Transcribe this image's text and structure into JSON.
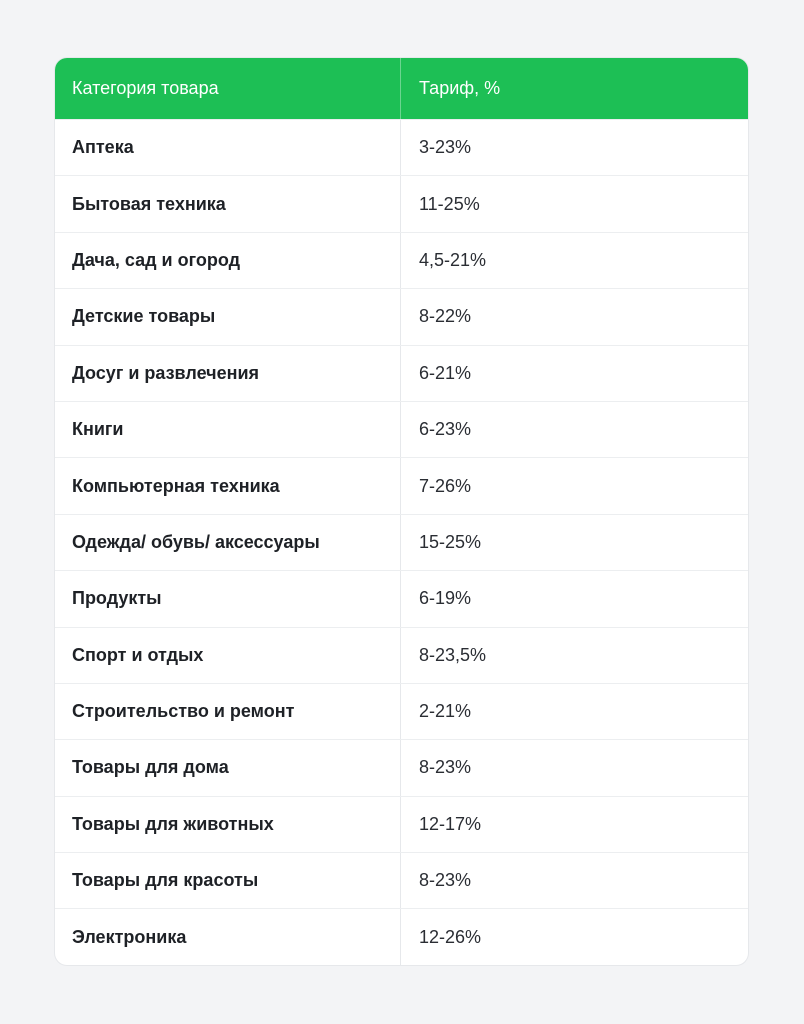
{
  "table": {
    "header_color": "#1dbf55",
    "columns": [
      "Категория товара",
      "Тариф, %"
    ],
    "rows": [
      {
        "category": "Аптека",
        "rate": "3-23%"
      },
      {
        "category": "Бытовая техника",
        "rate": "11-25%"
      },
      {
        "category": "Дача, сад и огород",
        "rate": "4,5-21%"
      },
      {
        "category": "Детские товары",
        "rate": "8-22%"
      },
      {
        "category": "Досуг и развлечения",
        "rate": "6-21%"
      },
      {
        "category": "Книги",
        "rate": "6-23%"
      },
      {
        "category": "Компьютерная техника",
        "rate": "7-26%"
      },
      {
        "category": "Одежда/ обувь/ аксессуары",
        "rate": "15-25%"
      },
      {
        "category": "Продукты",
        "rate": "6-19%"
      },
      {
        "category": "Спорт и отдых",
        "rate": "8-23,5%"
      },
      {
        "category": "Строительство и ремонт",
        "rate": "2-21%"
      },
      {
        "category": "Товары для дома",
        "rate": "8-23%"
      },
      {
        "category": "Товары для животных",
        "rate": "12-17%"
      },
      {
        "category": "Товары для красоты",
        "rate": "8-23%"
      },
      {
        "category": "Электроника",
        "rate": "12-26%"
      }
    ]
  }
}
